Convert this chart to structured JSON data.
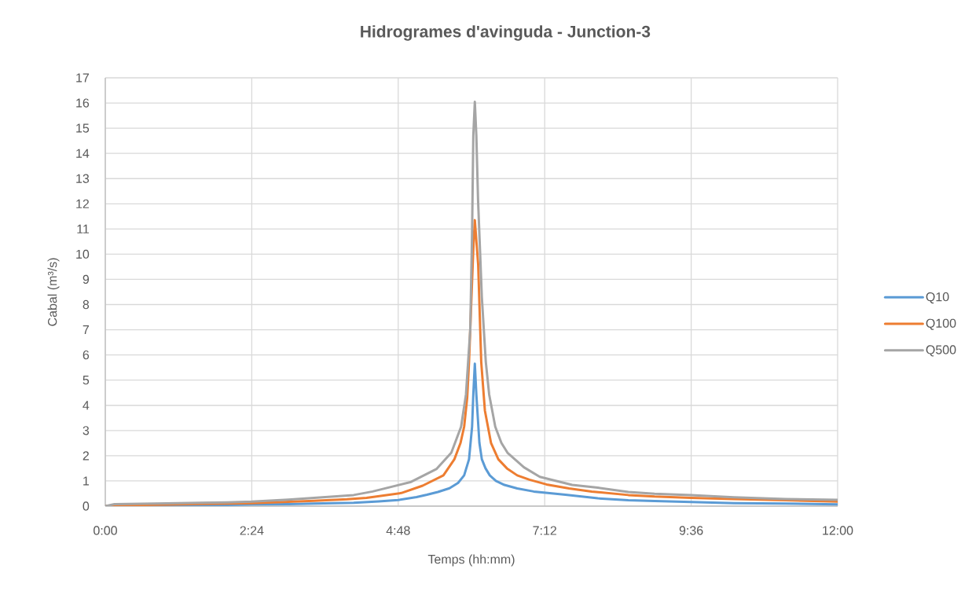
{
  "chart_data": {
    "type": "line",
    "title": "Hidrogrames d'avinguda - Junction-3",
    "xlabel": "Temps (hh:mm)",
    "ylabel": "Cabal (m³/s)",
    "xlim": [
      0,
      12
    ],
    "xticks": [
      {
        "value": 0,
        "label": "0:00"
      },
      {
        "value": 2.4,
        "label": "2:24"
      },
      {
        "value": 4.8,
        "label": "4:48"
      },
      {
        "value": 7.2,
        "label": "7:12"
      },
      {
        "value": 9.6,
        "label": "9:36"
      },
      {
        "value": 12,
        "label": "12:00"
      }
    ],
    "ylim": [
      0,
      17
    ],
    "yticks": [
      0,
      1,
      2,
      3,
      4,
      5,
      6,
      7,
      8,
      9,
      10,
      11,
      12,
      13,
      14,
      15,
      16,
      17
    ],
    "grid": true,
    "legend": "right",
    "series": [
      {
        "name": "Q10",
        "color": "#5b9bd5",
        "x": [
          0,
          0.15,
          1.0,
          2.0,
          2.4,
          3.0,
          3.42,
          4.07,
          4.48,
          4.8,
          5.1,
          5.27,
          5.45,
          5.64,
          5.78,
          5.88,
          5.96,
          6.01,
          6.03,
          6.055,
          6.08,
          6.13,
          6.17,
          6.23,
          6.3,
          6.4,
          6.54,
          6.75,
          7.02,
          7.25,
          7.54,
          8.07,
          8.57,
          9.0,
          9.6,
          10.3,
          11.15,
          12
        ],
        "values": [
          0,
          0.02,
          0.03,
          0.05,
          0.07,
          0.08,
          0.1,
          0.13,
          0.19,
          0.24,
          0.36,
          0.45,
          0.56,
          0.71,
          0.92,
          1.22,
          1.86,
          3.15,
          4.43,
          5.65,
          4.43,
          2.51,
          1.86,
          1.5,
          1.22,
          1.0,
          0.84,
          0.7,
          0.58,
          0.52,
          0.45,
          0.31,
          0.23,
          0.2,
          0.16,
          0.12,
          0.1,
          0.07
        ]
      },
      {
        "name": "Q100",
        "color": "#ed7d31",
        "x": [
          0,
          0.15,
          1.0,
          2.0,
          2.4,
          3.0,
          3.42,
          3.96,
          4.28,
          4.85,
          5.2,
          5.54,
          5.72,
          5.82,
          5.88,
          5.93,
          5.96,
          6.0,
          6.03,
          6.055,
          6.11,
          6.16,
          6.22,
          6.32,
          6.44,
          6.58,
          6.75,
          6.95,
          7.23,
          7.6,
          7.97,
          8.57,
          9.0,
          9.6,
          10.3,
          11.15,
          12
        ],
        "values": [
          0,
          0.03,
          0.06,
          0.1,
          0.12,
          0.17,
          0.21,
          0.27,
          0.33,
          0.52,
          0.81,
          1.22,
          1.86,
          2.5,
          3.15,
          4.3,
          5.72,
          8.29,
          10.2,
          11.35,
          9.58,
          5.72,
          3.79,
          2.51,
          1.86,
          1.5,
          1.22,
          1.05,
          0.86,
          0.7,
          0.58,
          0.44,
          0.38,
          0.33,
          0.28,
          0.23,
          0.18
        ]
      },
      {
        "name": "Q500",
        "color": "#a5a5a5",
        "x": [
          0,
          0.15,
          1.0,
          2.0,
          2.4,
          3.0,
          3.42,
          4.07,
          4.38,
          5.01,
          5.43,
          5.67,
          5.83,
          5.91,
          5.98,
          6.01,
          6.03,
          6.055,
          6.08,
          6.108,
          6.17,
          6.235,
          6.29,
          6.39,
          6.49,
          6.59,
          6.86,
          7.12,
          7.65,
          8.07,
          8.57,
          9.0,
          9.6,
          10.3,
          11.15,
          12
        ],
        "values": [
          0,
          0.08,
          0.11,
          0.15,
          0.18,
          0.26,
          0.33,
          0.44,
          0.58,
          0.96,
          1.48,
          2.12,
          3.15,
          4.43,
          7.0,
          10.86,
          14.7,
          16.05,
          14.7,
          12.15,
          8.29,
          5.72,
          4.43,
          3.15,
          2.51,
          2.12,
          1.54,
          1.16,
          0.84,
          0.73,
          0.56,
          0.49,
          0.44,
          0.35,
          0.28,
          0.25
        ]
      }
    ]
  }
}
